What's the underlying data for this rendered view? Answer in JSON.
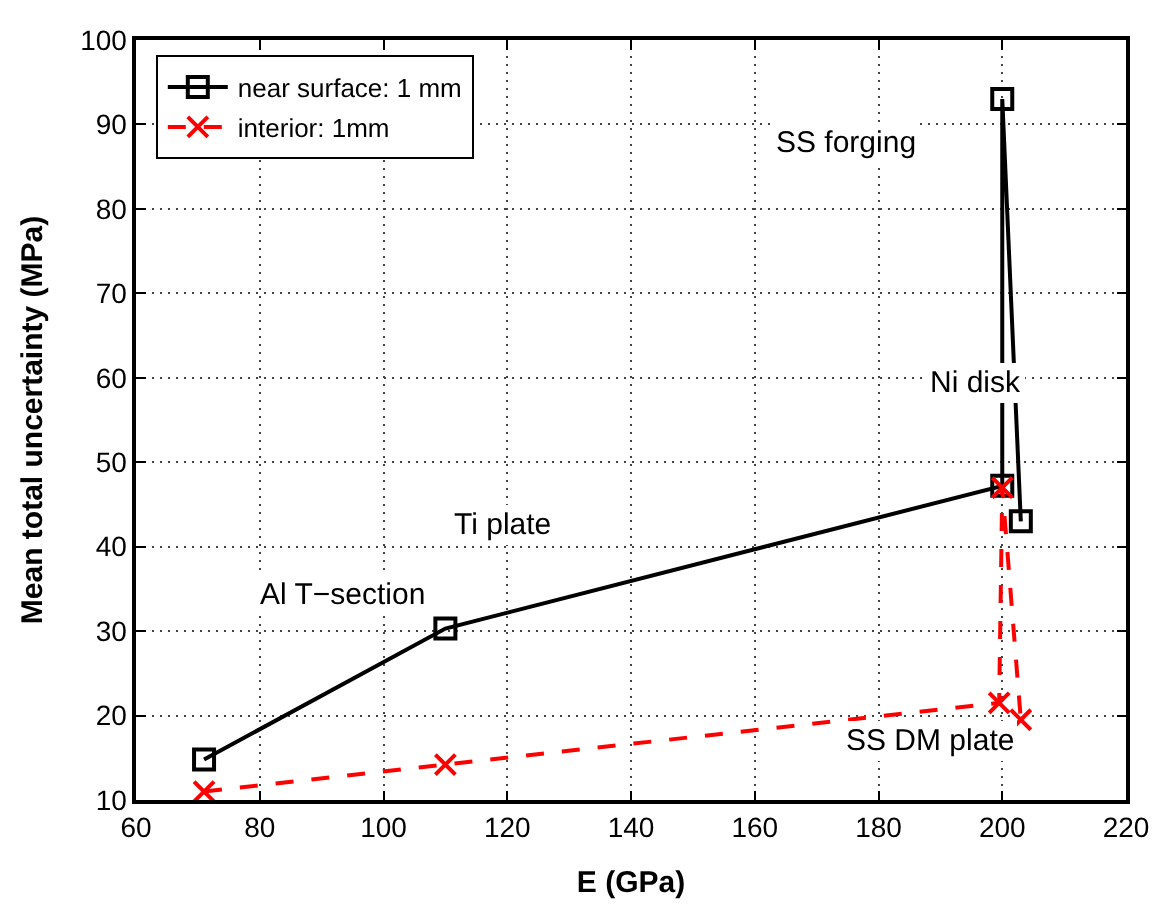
{
  "chart_data": {
    "type": "line",
    "xlabel": "E (GPa)",
    "ylabel": "Mean total uncertainty (MPa)",
    "xlim": [
      60,
      220
    ],
    "xticks": [
      60,
      80,
      100,
      120,
      140,
      160,
      180,
      200,
      220
    ],
    "ylim": [
      10,
      100
    ],
    "yticks": [
      10,
      20,
      30,
      40,
      50,
      60,
      70,
      80,
      90,
      100
    ],
    "grid": true,
    "legend": "top left",
    "series": [
      {
        "name": "near surface: 1 mm",
        "color": "#000000",
        "marker": "square",
        "line_style": "solid",
        "x": [
          71,
          110,
          200,
          200,
          203
        ],
        "values": [
          14.8,
          30.3,
          47.2,
          93,
          43
        ]
      },
      {
        "name": "interior: 1mm",
        "color": "#ff0000",
        "marker": "cross",
        "line_style": "dashed",
        "x": [
          71,
          110,
          199.5,
          200,
          203
        ],
        "values": [
          11,
          14.2,
          21.5,
          47,
          19.5
        ]
      }
    ],
    "annotations": [
      "Al T−section",
      "Ti plate",
      "Ni disk",
      "SS forging",
      "SS DM plate"
    ]
  }
}
